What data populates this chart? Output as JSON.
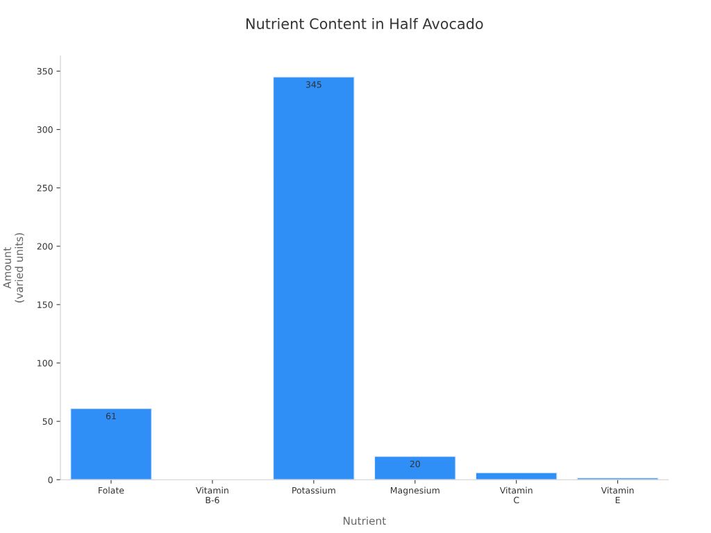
{
  "chart_data": {
    "type": "bar",
    "title": "Nutrient Content in Half Avocado",
    "xlabel": "Nutrient",
    "ylabel": "Amount\n(varied units)",
    "categories": [
      "Folate",
      "Vitamin\nB-6",
      "Potassium",
      "Magnesium",
      "Vitamin\nC",
      "Vitamin\nE"
    ],
    "values": [
      61,
      null,
      345,
      20,
      6,
      1.5
    ],
    "value_labels": [
      "61",
      null,
      "345",
      "20",
      null,
      null
    ],
    "color": "#2f8ff7",
    "ylim": [
      0,
      363
    ],
    "yticks": [
      0,
      50,
      100,
      150,
      200,
      250,
      300,
      350
    ],
    "grid": false,
    "legend": false
  }
}
